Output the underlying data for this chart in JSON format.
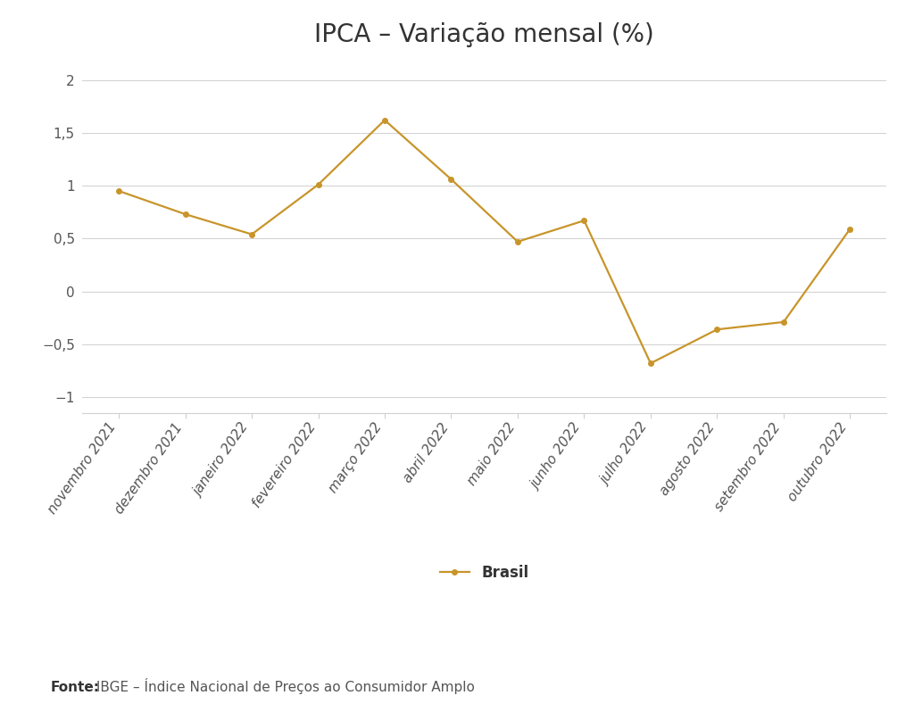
{
  "title": "IPCA – Variação mensal (%)",
  "categories": [
    "novembro 2021",
    "dezembro 2021",
    "janeiro 2022",
    "fevereiro 2022",
    "março 2022",
    "abril 2022",
    "maio 2022",
    "junho 2022",
    "julho 2022",
    "agosto 2022",
    "setembro 2022",
    "outubro 2022"
  ],
  "values": [
    0.95,
    0.73,
    0.54,
    1.01,
    1.62,
    1.06,
    0.47,
    0.67,
    -0.68,
    -0.36,
    -0.29,
    0.59
  ],
  "line_color": "#C8952A",
  "marker_style": "o",
  "marker_size": 4,
  "line_width": 1.6,
  "ylim": [
    -1.15,
    2.15
  ],
  "yticks": [
    -1,
    -0.5,
    0,
    0.5,
    1,
    1.5,
    2
  ],
  "ytick_labels": [
    "−1",
    "−0,5",
    "0",
    "0,5",
    "1",
    "1,5",
    "2"
  ],
  "grid_color": "#d0d0d0",
  "grid_linewidth": 0.7,
  "background_color": "#ffffff",
  "legend_label": "Brasil",
  "legend_fontsize": 12,
  "title_fontsize": 20,
  "tick_fontsize": 11,
  "source_text_normal": " IBGE – Índice Nacional de Preços ao Consumidor Amplo",
  "source_text_bold": "Fonte:",
  "source_fontsize": 11,
  "text_color": "#555555"
}
